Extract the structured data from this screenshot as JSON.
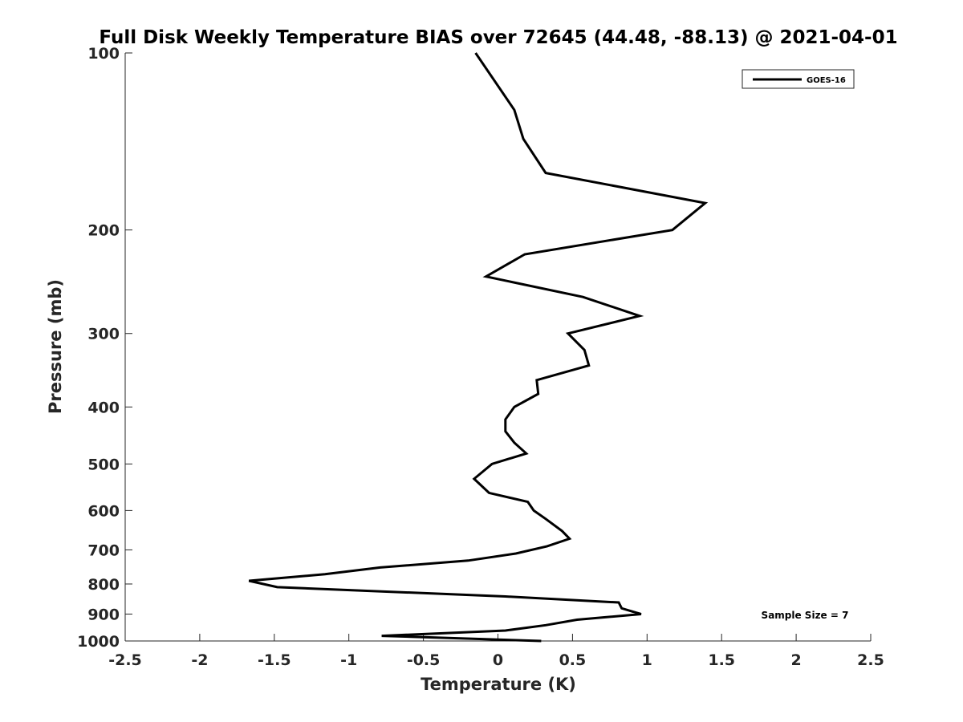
{
  "chart_data": {
    "type": "line",
    "title": "Full Disk Weekly Temperature BIAS over 72645 (44.48, -88.13) @ 2021-04-01",
    "xlabel": "Temperature (K)",
    "ylabel": "Pressure (mb)",
    "xlim": [
      -2.5,
      2.5
    ],
    "ylim": [
      100,
      1000
    ],
    "y_scale": "log",
    "y_reversed": true,
    "x_ticks": [
      "-2.5",
      "-2",
      "-1.5",
      "-1",
      "-0.5",
      "0",
      "0.5",
      "1",
      "1.5",
      "2",
      "2.5"
    ],
    "y_ticks": [
      "100",
      "200",
      "300",
      "400",
      "500",
      "600",
      "700",
      "800",
      "900",
      "1000"
    ],
    "grid": false,
    "legend_position": "top-right",
    "annotation": "Sample Size = 7",
    "series": [
      {
        "name": "GOES-16",
        "color": "#000000",
        "x": [
          -0.15,
          0.11,
          0.17,
          0.32,
          1.39,
          1.17,
          0.18,
          -0.08,
          0.57,
          0.95,
          0.47,
          0.58,
          0.61,
          0.26,
          0.27,
          0.11,
          0.05,
          0.05,
          0.11,
          0.19,
          -0.04,
          -0.16,
          -0.06,
          0.2,
          0.24,
          0.32,
          0.43,
          0.48,
          0.33,
          0.12,
          -0.2,
          -0.79,
          -1.16,
          -1.67,
          -1.48,
          0.05,
          0.81,
          0.83,
          0.96,
          0.53,
          0.32,
          0.05,
          -0.78,
          0.29
        ],
        "y": [
          100,
          125,
          140,
          160,
          180,
          200,
          220,
          240,
          260,
          280,
          300,
          320,
          340,
          360,
          380,
          400,
          420,
          440,
          460,
          480,
          500,
          530,
          560,
          580,
          600,
          620,
          650,
          670,
          690,
          710,
          730,
          750,
          770,
          790,
          810,
          840,
          860,
          880,
          900,
          920,
          940,
          960,
          980,
          1000
        ]
      }
    ]
  }
}
